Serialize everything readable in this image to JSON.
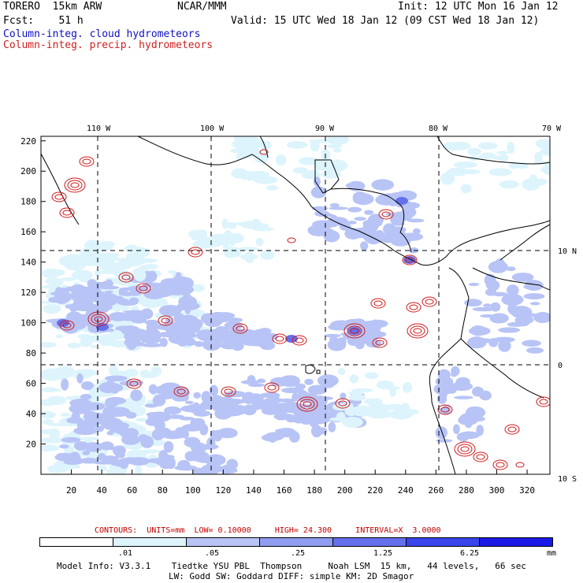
{
  "header": {
    "model": "TORERO  15km ARW",
    "center": "NCAR/MMM",
    "init": "Init: 12 UTC Mon 16 Jan 12",
    "fcst": "Fcst:    51 h",
    "valid": "Valid: 15 UTC Wed 18 Jan 12 (09 CST Wed 18 Jan 12)",
    "field1": "Column-integ. cloud hydrometeors",
    "field2": "Column-integ. precip. hydrometeors"
  },
  "map": {
    "lon_labels": [
      "110 W",
      "100 W",
      "90 W",
      "80 W",
      "70 W"
    ],
    "lat_labels": [
      "10 N",
      "0",
      "10 S"
    ],
    "x_ticks": [
      "20",
      "40",
      "60",
      "80",
      "100",
      "120",
      "140",
      "160",
      "180",
      "200",
      "220",
      "240",
      "260",
      "280",
      "300",
      "320"
    ],
    "y_ticks": [
      "20",
      "40",
      "60",
      "80",
      "100",
      "120",
      "140",
      "160",
      "180",
      "200",
      "220"
    ],
    "shade_colors": [
      "#ddf4fc",
      "#b8c4f6",
      "#8f9cf0",
      "#6470ec",
      "#3a44ec",
      "#1a1ae8"
    ],
    "contour_color": "#d01818",
    "land_color": "#000000"
  },
  "contour_info": {
    "prefix": "CONTOURS:",
    "units": "UNITS=mm",
    "low": "LOW= 0.10000",
    "high": "HIGH= 24.300",
    "interval": "INTERVAL=X  3.0000"
  },
  "colorbar": {
    "colors": [
      "#ffffff",
      "#ddf4fc",
      "#b8c4f6",
      "#8f9cf0",
      "#6470ec",
      "#3a44ec",
      "#1a1ae8"
    ],
    "labels": [
      ".01",
      ".05",
      ".25",
      "1.25",
      "6.25"
    ],
    "unit": "mm"
  },
  "model_info": {
    "line1": "Model Info: V3.3.1    Tiedtke YSU PBL  Thompson     Noah LSM  15 km,   44 levels,   66 sec",
    "line2": "LW: Godd SW: Goddard DIFF: simple KM: 2D Smagor"
  }
}
